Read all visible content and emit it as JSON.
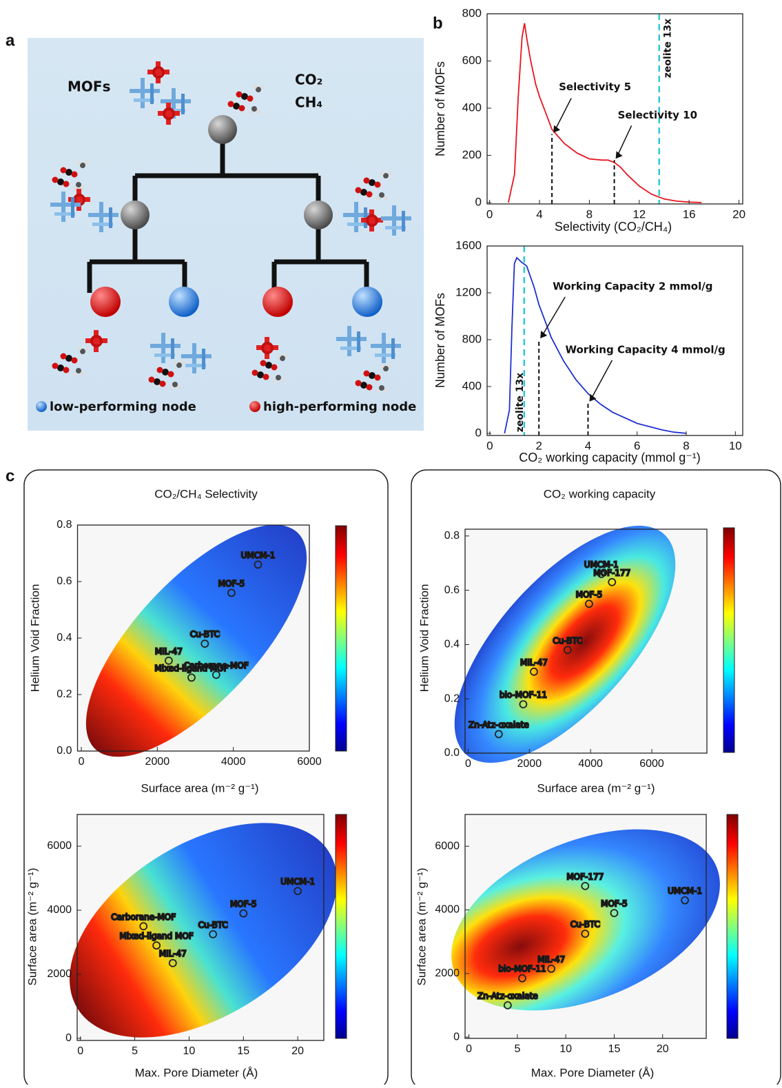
{
  "panel_labels": [
    "a",
    "b",
    "c"
  ],
  "diagram": {
    "mofs": "MOFs",
    "gases": [
      "CO₂",
      "CH₄"
    ],
    "legend": [
      "low-performing node",
      "high-performing node"
    ]
  },
  "chart_data": [
    {
      "type": "line",
      "color": "#e8141e",
      "x": [
        1.5,
        2,
        2.3,
        2.6,
        2.8,
        3,
        3.3,
        3.7,
        4,
        4.5,
        5,
        5.5,
        6,
        7,
        8,
        9,
        9.5,
        10,
        10.5,
        11,
        12,
        13,
        14,
        15,
        16,
        17
      ],
      "values": [
        0,
        120,
        450,
        700,
        760,
        690,
        600,
        500,
        450,
        380,
        310,
        280,
        250,
        210,
        185,
        180,
        180,
        170,
        150,
        120,
        70,
        35,
        15,
        6,
        2,
        0
      ],
      "xlim": [
        -0.2,
        20.3
      ],
      "ylim": [
        -6,
        800
      ],
      "xticks": [
        0,
        4,
        8,
        12,
        16,
        20
      ],
      "yticks": [
        0,
        200,
        400,
        600,
        800
      ],
      "xlabel": "Selectivity  (CO₂/CH₄)",
      "ylabel": "Number of MOFs",
      "reference_line": {
        "x": 13.6,
        "label": "zeolite 13x",
        "color": "#2ec8d8"
      },
      "markers": [
        {
          "x": 5,
          "y": 290,
          "label": "Selectivity 5"
        },
        {
          "x": 10,
          "y": 180,
          "label": "Selectivity 10"
        }
      ]
    },
    {
      "type": "line",
      "color": "#1f2fd0",
      "x": [
        0.6,
        0.8,
        0.9,
        1,
        1.1,
        1.3,
        1.5,
        1.8,
        2,
        2.5,
        3,
        3.5,
        4,
        4.5,
        5,
        6,
        7,
        7.5,
        8
      ],
      "values": [
        0,
        200,
        900,
        1450,
        1500,
        1460,
        1430,
        1250,
        1100,
        820,
        620,
        460,
        340,
        250,
        180,
        85,
        30,
        10,
        0
      ],
      "xlim": [
        -0.11,
        10.3
      ],
      "ylim": [
        -18,
        1600
      ],
      "xticks": [
        0,
        2,
        4,
        6,
        8,
        10
      ],
      "yticks": [
        0,
        400,
        800,
        1200,
        1600
      ],
      "xlabel": "CO₂ working capacity (mmol g⁻¹)",
      "ylabel": "Number of MOFs",
      "reference_line": {
        "x": 1.4,
        "label": "zeolite 13x",
        "color": "#2ec8d8"
      },
      "markers": [
        {
          "x": 2,
          "y": 800,
          "label": "Working Capacity 2 mmol/g"
        },
        {
          "x": 4,
          "y": 260,
          "label": "Working Capacity 4 mmol/g"
        }
      ]
    },
    {
      "type": "scatter",
      "title": "CO₂/CH₄ Selectivity",
      "xlim": [
        -100,
        6000
      ],
      "ylim": [
        0,
        0.8
      ],
      "xticks": [
        0,
        2000,
        4000,
        6000
      ],
      "yticks": [
        {
          "value": 0,
          "label": "0.0"
        },
        0.2,
        0.4,
        0.6,
        0.8
      ],
      "xlabel": "Surface area (m⁻² g⁻¹)",
      "ylabel": "Helium Void Fraction",
      "points": [
        {
          "name": "UMCM-1",
          "x": 4650,
          "y": 0.66
        },
        {
          "name": "MOF-5",
          "x": 3950,
          "y": 0.56
        },
        {
          "name": "Cu-BTC",
          "x": 3250,
          "y": 0.38
        },
        {
          "name": "MIL-47",
          "x": 2300,
          "y": 0.32
        },
        {
          "name": "Carborane-MOF",
          "x": 3550,
          "y": 0.27
        },
        {
          "name": "Mixed-ligand MOF",
          "x": 2900,
          "y": 0.26
        }
      ]
    },
    {
      "type": "scatter",
      "title": "CO₂ working capacity",
      "xlim": [
        -100,
        7800
      ],
      "ylim": [
        0,
        0.825
      ],
      "xticks": [
        0,
        2000,
        4000,
        6000
      ],
      "yticks": [
        {
          "value": 0,
          "label": "0.0"
        },
        0.2,
        0.4,
        0.6,
        0.8
      ],
      "xlabel": "Surface area (m⁻² g⁻¹)",
      "ylabel": "Helium Void Fraction",
      "points": [
        {
          "name": "UMCM-1",
          "x": 4350,
          "y": 0.66
        },
        {
          "name": "MOF-177",
          "x": 4700,
          "y": 0.63
        },
        {
          "name": "MOF-5",
          "x": 3950,
          "y": 0.55
        },
        {
          "name": "Cu-BTC",
          "x": 3250,
          "y": 0.38
        },
        {
          "name": "MIL-47",
          "x": 2150,
          "y": 0.3
        },
        {
          "name": "bio-MOF-11",
          "x": 1800,
          "y": 0.18
        },
        {
          "name": "Zn-Atz-oxalate",
          "x": 1000,
          "y": 0.07
        }
      ]
    },
    {
      "type": "scatter",
      "xlim": [
        -0.3,
        22.4
      ],
      "ylim": [
        -65,
        6990
      ],
      "xticks": [
        0,
        5,
        10,
        15,
        20
      ],
      "yticks": [
        0,
        2000,
        4000,
        6000
      ],
      "xlabel": "Max. Pore Diameter (Å)",
      "ylabel": "Surface area (m⁻² g⁻¹)",
      "points": [
        {
          "name": "UMCM-1",
          "x": 20,
          "y": 4600
        },
        {
          "name": "MOF-5",
          "x": 15,
          "y": 3900
        },
        {
          "name": "Cu-BTC",
          "x": 12.2,
          "y": 3250
        },
        {
          "name": "Carborane-MOF",
          "x": 5.8,
          "y": 3500
        },
        {
          "name": "Mixed-ligand MOF",
          "x": 7,
          "y": 2900
        },
        {
          "name": "MIL-47",
          "x": 8.5,
          "y": 2350
        }
      ]
    },
    {
      "type": "scatter",
      "xlim": [
        -0.4,
        24.5
      ],
      "ylim": [
        -40,
        7000
      ],
      "xticks": [
        0,
        5,
        10,
        15,
        20
      ],
      "yticks": [
        0,
        2000,
        4000,
        6000
      ],
      "xlabel": "Max. Pore Diameter (Å)",
      "ylabel": "Surface area (m⁻² g⁻¹)",
      "points": [
        {
          "name": "UMCM-1",
          "x": 22.3,
          "y": 4300
        },
        {
          "name": "MOF-177",
          "x": 12,
          "y": 4750
        },
        {
          "name": "MOF-5",
          "x": 15,
          "y": 3900
        },
        {
          "name": "Cu-BTC",
          "x": 12,
          "y": 3250
        },
        {
          "name": "MIL-47",
          "x": 8.5,
          "y": 2150
        },
        {
          "name": "bio-MOF-11",
          "x": 5.5,
          "y": 1850
        },
        {
          "name": "Zn-Atz-oxalate",
          "x": 4,
          "y": 1000
        }
      ]
    }
  ]
}
